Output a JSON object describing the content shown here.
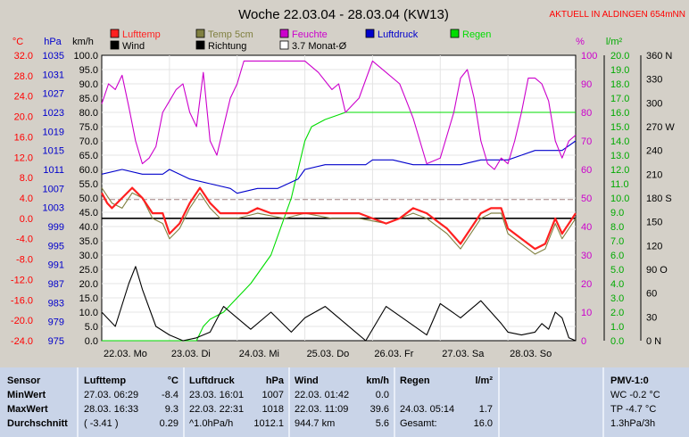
{
  "chart_data": {
    "type": "line",
    "title": "Woche 22.03.04 - 28.03.04 (KW13)",
    "subtitle": "AKTUELL IN ALDINGEN 654mNN",
    "axes": {
      "temp": {
        "unit": "°C",
        "ticks": [
          "32.0",
          "28.0",
          "24.0",
          "20.0",
          "16.0",
          "12.0",
          "8.0",
          "4.0",
          "0.0",
          "-4.0",
          "-8.0",
          "-12.0",
          "-16.0",
          "-20.0",
          "-24.0"
        ],
        "color": "#ff0000"
      },
      "pressure": {
        "unit": "hPa",
        "ticks": [
          "1035",
          "1031",
          "1027",
          "1023",
          "1019",
          "1015",
          "1011",
          "1007",
          "1003",
          "999",
          "995",
          "991",
          "987",
          "983",
          "979",
          "975"
        ],
        "color": "#0000cc"
      },
      "wind": {
        "unit": "km/h",
        "ticks": [
          "100.0",
          "95.0",
          "90.0",
          "85.0",
          "80.0",
          "75.0",
          "70.0",
          "65.0",
          "60.0",
          "55.0",
          "50.0",
          "45.0",
          "40.0",
          "35.0",
          "30.0",
          "25.0",
          "20.0",
          "15.0",
          "10.0",
          "5.0",
          "0.0"
        ],
        "color": "#000000"
      },
      "humidity": {
        "unit": "%",
        "ticks": [
          "100",
          "90",
          "80",
          "70",
          "60",
          "50",
          "40",
          "30",
          "20",
          "10",
          "0"
        ],
        "color": "#cc00cc"
      },
      "rain": {
        "unit": "l/m²",
        "ticks": [
          "20.0",
          "19.0",
          "18.0",
          "17.0",
          "16.0",
          "15.0",
          "14.0",
          "13.0",
          "12.0",
          "11.0",
          "10.0",
          "9.0",
          "8.0",
          "7.0",
          "6.0",
          "5.0",
          "4.0",
          "3.0",
          "2.0",
          "1.0",
          "0.0"
        ],
        "color": "#00aa00"
      },
      "direction": {
        "ticks": [
          "360 N",
          "330",
          "300",
          "270 W",
          "240",
          "210",
          "180 S",
          "150",
          "120",
          "90 O",
          "60",
          "30",
          "0 N"
        ],
        "color": "#000000"
      }
    },
    "x_labels": [
      "22.03. Mo",
      "23.03. Di",
      "24.03. Mi",
      "25.03. Do",
      "26.03. Fr",
      "27.03. Sa",
      "28.03. So"
    ],
    "legend": [
      {
        "label": "Lufttemp",
        "color": "#ff2020"
      },
      {
        "label": "Temp 5cm",
        "color": "#808040"
      },
      {
        "label": "Feuchte",
        "color": "#cc00cc"
      },
      {
        "label": "Luftdruck",
        "color": "#0000cc"
      },
      {
        "label": "Regen",
        "color": "#00dd00"
      },
      {
        "label": "Wind",
        "color": "#000000"
      },
      {
        "label": "Richtung",
        "color": "#000000"
      },
      {
        "label": "3.7 Monat-Ø",
        "color": "#ffffff"
      }
    ],
    "series": [
      {
        "name": "Lufttemp",
        "color": "#ff2020",
        "x": [
          0,
          0.08,
          0.15,
          0.3,
          0.45,
          0.6,
          0.75,
          0.9,
          1.0,
          1.15,
          1.3,
          1.45,
          1.6,
          1.75,
          1.9,
          2.0,
          2.15,
          2.3,
          2.5,
          2.7,
          2.9,
          3.0,
          3.2,
          3.4,
          3.6,
          3.8,
          4.0,
          4.2,
          4.4,
          4.6,
          4.8,
          5.0,
          5.1,
          5.3,
          5.5,
          5.6,
          5.75,
          5.9,
          6.0,
          6.2,
          6.4,
          6.55,
          6.7,
          6.8,
          6.9,
          7.0
        ],
        "y": [
          5,
          3,
          2,
          4,
          6,
          4,
          1,
          1,
          -3,
          -1,
          3,
          6,
          3,
          1,
          1,
          1,
          1,
          2,
          1,
          1,
          1,
          1,
          1,
          1,
          1,
          1,
          0,
          -1,
          0,
          2,
          1,
          -1,
          -2,
          -5,
          -1,
          1,
          2,
          2,
          -2,
          -4,
          -6,
          -5,
          0,
          -3,
          -1,
          1
        ]
      },
      {
        "name": "Temp 5cm",
        "color": "#808040",
        "x": [
          0,
          0.15,
          0.3,
          0.45,
          0.6,
          0.75,
          0.9,
          1.0,
          1.15,
          1.3,
          1.45,
          1.6,
          1.75,
          1.9,
          2.0,
          2.3,
          2.7,
          3.0,
          3.4,
          3.8,
          4.2,
          4.6,
          4.8,
          5.0,
          5.1,
          5.3,
          5.5,
          5.6,
          5.75,
          5.9,
          6.0,
          6.2,
          6.4,
          6.55,
          6.7,
          6.8,
          6.9,
          7.0
        ],
        "y": [
          6,
          3,
          2,
          5,
          4,
          0,
          -1,
          -4,
          -2,
          2,
          5,
          2,
          0,
          0,
          0,
          1,
          0,
          1,
          0,
          0,
          -1,
          1,
          0,
          -2,
          -3,
          -6,
          -2,
          0,
          1,
          1,
          -3,
          -5,
          -7,
          -6,
          -1,
          -4,
          -2,
          0
        ]
      },
      {
        "name": "Feuchte",
        "color": "#cc00cc",
        "x": [
          0,
          0.1,
          0.2,
          0.3,
          0.4,
          0.5,
          0.6,
          0.7,
          0.8,
          0.9,
          1.0,
          1.1,
          1.2,
          1.3,
          1.4,
          1.5,
          1.6,
          1.7,
          1.8,
          1.9,
          2.0,
          2.1,
          2.3,
          2.5,
          2.7,
          2.9,
          3.0,
          3.2,
          3.4,
          3.5,
          3.6,
          3.8,
          4.0,
          4.2,
          4.4,
          4.5,
          4.6,
          4.7,
          4.8,
          5.0,
          5.1,
          5.2,
          5.3,
          5.4,
          5.5,
          5.6,
          5.7,
          5.8,
          5.9,
          6.0,
          6.1,
          6.2,
          6.3,
          6.4,
          6.5,
          6.6,
          6.7,
          6.8,
          6.9,
          7.0
        ],
        "y": [
          83,
          90,
          88,
          93,
          82,
          70,
          62,
          64,
          68,
          80,
          84,
          88,
          90,
          80,
          75,
          94,
          70,
          65,
          75,
          85,
          90,
          98,
          98,
          98,
          98,
          98,
          98,
          94,
          88,
          90,
          80,
          85,
          98,
          94,
          90,
          84,
          78,
          70,
          62,
          64,
          72,
          80,
          92,
          95,
          85,
          70,
          62,
          60,
          64,
          62,
          70,
          80,
          92,
          92,
          90,
          84,
          70,
          64,
          70,
          72
        ]
      },
      {
        "name": "Luftdruck",
        "color": "#0000cc",
        "x": [
          0,
          0.3,
          0.6,
          0.9,
          1.0,
          1.3,
          1.6,
          1.9,
          2.0,
          2.3,
          2.6,
          2.9,
          3.0,
          3.3,
          3.6,
          3.9,
          4.0,
          4.3,
          4.6,
          4.9,
          5.0,
          5.3,
          5.6,
          5.9,
          6.0,
          6.2,
          6.4,
          6.6,
          6.8,
          7.0
        ],
        "y": [
          1010,
          1011,
          1010,
          1010,
          1011,
          1009,
          1008,
          1007,
          1006,
          1007,
          1007,
          1009,
          1011,
          1012,
          1012,
          1012,
          1013,
          1013,
          1012,
          1012,
          1012,
          1012,
          1013,
          1013,
          1013,
          1014,
          1015,
          1015,
          1015,
          1017
        ]
      },
      {
        "name": "Regen",
        "color": "#00dd00",
        "x": [
          0,
          1.0,
          1.4,
          1.5,
          1.6,
          1.8,
          2.0,
          2.2,
          2.5,
          2.8,
          3.0,
          3.1,
          3.3,
          3.6,
          4.0,
          4.5,
          5.0,
          5.5,
          6.0,
          6.5,
          7.0
        ],
        "y": [
          0,
          0,
          0,
          1,
          1.5,
          2,
          3,
          4,
          6,
          10,
          14,
          15,
          15.5,
          16,
          16,
          16,
          16,
          16,
          16,
          16,
          16
        ]
      },
      {
        "name": "Wind",
        "color": "#000000",
        "x": [
          0,
          0.2,
          0.4,
          0.5,
          0.6,
          0.8,
          1.0,
          1.2,
          1.4,
          1.6,
          1.8,
          2.0,
          2.2,
          2.5,
          2.8,
          3.0,
          3.3,
          3.6,
          3.9,
          4.2,
          4.5,
          4.8,
          5.0,
          5.3,
          5.6,
          5.9,
          6.0,
          6.2,
          6.4,
          6.5,
          6.6,
          6.7,
          6.8,
          6.9,
          7.0
        ],
        "y": [
          10,
          5,
          20,
          26,
          18,
          5,
          2,
          0,
          1,
          3,
          12,
          8,
          4,
          10,
          3,
          8,
          12,
          6,
          0,
          12,
          7,
          2,
          13,
          8,
          14,
          6,
          3,
          2,
          3,
          6,
          4,
          10,
          8,
          1,
          0
        ]
      }
    ],
    "reference_lines": [
      {
        "name": "3.7 Monat-Ø",
        "axis": "temp",
        "value": 3.7,
        "style": "dashed"
      },
      {
        "axis": "temp",
        "value": 0,
        "style": "solid"
      }
    ]
  },
  "table": {
    "columns": [
      {
        "title": "Sensor",
        "rows": [
          "MinWert",
          "MaxWert",
          "Durchschnitt"
        ]
      },
      {
        "title": "Lufttemp",
        "unit": "°C",
        "rows": [
          [
            "27.03.  06:29",
            "-8.4"
          ],
          [
            "28.03.  16:33",
            "9.3"
          ],
          [
            "( -3.41 )",
            "0.29"
          ]
        ]
      },
      {
        "title": "Luftdruck",
        "unit": "hPa",
        "rows": [
          [
            "23.03.  16:01",
            "1007"
          ],
          [
            "22.03.  22:31",
            "1018"
          ],
          [
            "^1.0hPa/h",
            "1012.1"
          ]
        ]
      },
      {
        "title": "Wind",
        "unit": "km/h",
        "rows": [
          [
            "22.03.  01:42",
            "0.0"
          ],
          [
            "22.03.  11:09",
            "39.6"
          ],
          [
            "944.7 km",
            "5.6"
          ]
        ]
      },
      {
        "title": "Regen",
        "unit": "l/m²",
        "rows": [
          [
            "",
            ""
          ],
          [
            "24.03.  05:14",
            "1.7"
          ],
          [
            "Gesamt:",
            "16.0"
          ]
        ]
      },
      {
        "title": "PMV-1:0",
        "rows": [
          "WC -0.2 °C",
          "TP -4.7 °C",
          "1.3hPa/3h"
        ]
      }
    ]
  }
}
